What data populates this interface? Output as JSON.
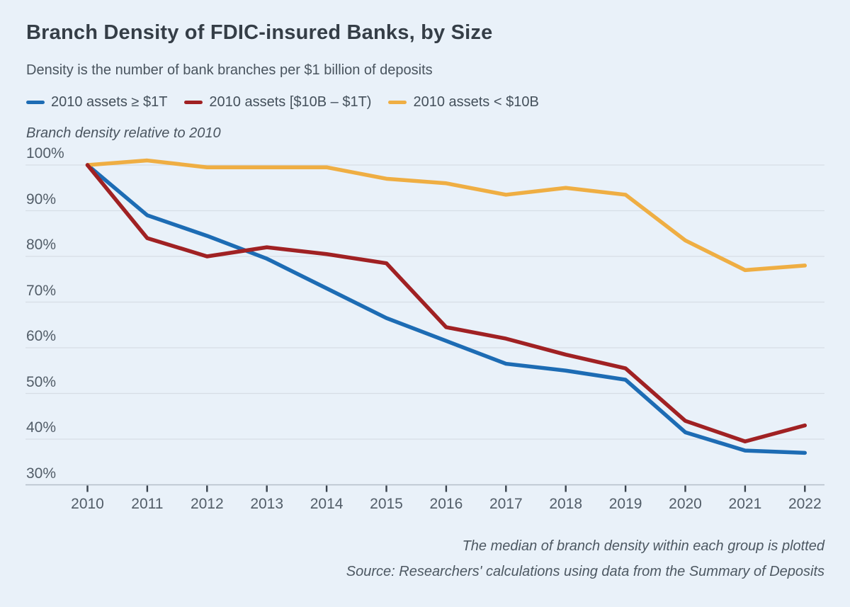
{
  "header": {
    "title": "Branch Density of FDIC-insured Banks, by Size",
    "subtitle": "Density is the number of bank branches per $1 billion of deposits"
  },
  "legend": {
    "items": [
      {
        "label": "2010 assets ≥ $1T",
        "color": "#1d6cb4"
      },
      {
        "label": "2010 assets [$10B – $1T)",
        "color": "#a02123"
      },
      {
        "label": "2010 assets < $10B",
        "color": "#efae43"
      }
    ]
  },
  "y_axis_label": "Branch density relative to 2010",
  "chart_data": {
    "type": "line",
    "x": [
      2010,
      2011,
      2012,
      2013,
      2014,
      2015,
      2016,
      2017,
      2018,
      2019,
      2020,
      2021,
      2022
    ],
    "x_tick_labels": [
      "2010",
      "2011",
      "2012",
      "2013",
      "2014",
      "2015",
      "2016",
      "2017",
      "2018",
      "2019",
      "2020",
      "2021",
      "2022"
    ],
    "y_ticks": [
      100,
      90,
      80,
      70,
      60,
      50,
      40,
      30
    ],
    "y_tick_suffix": "%",
    "ylim": [
      30,
      101.5
    ],
    "grid": "horizontal",
    "legend_position": "top-left",
    "series": [
      {
        "name": "2010 assets ≥ $1T",
        "color": "#1d6cb4",
        "values": [
          100,
          89,
          84.5,
          79.5,
          73,
          66.5,
          61.5,
          56.5,
          55,
          53,
          41.5,
          37.5,
          37
        ]
      },
      {
        "name": "2010 assets [$10B – $1T)",
        "color": "#a02123",
        "values": [
          100,
          84,
          80,
          82,
          80.5,
          78.5,
          64.5,
          62,
          58.5,
          55.5,
          44,
          39.5,
          43
        ]
      },
      {
        "name": "2010 assets < $10B",
        "color": "#efae43",
        "values": [
          100,
          101,
          99.5,
          99.5,
          99.5,
          97,
          96,
          93.5,
          95,
          93.5,
          83.5,
          77,
          78
        ]
      }
    ]
  },
  "footnotes": {
    "note": "The median of branch density within each group is plotted",
    "source": "Source: Researchers' calculations using data from the Summary of Deposits"
  },
  "colors": {
    "background": "#e9f1f9",
    "gridline": "#d7dee6",
    "baseline": "#b6bfc9",
    "axis_tick": "#39434d"
  }
}
